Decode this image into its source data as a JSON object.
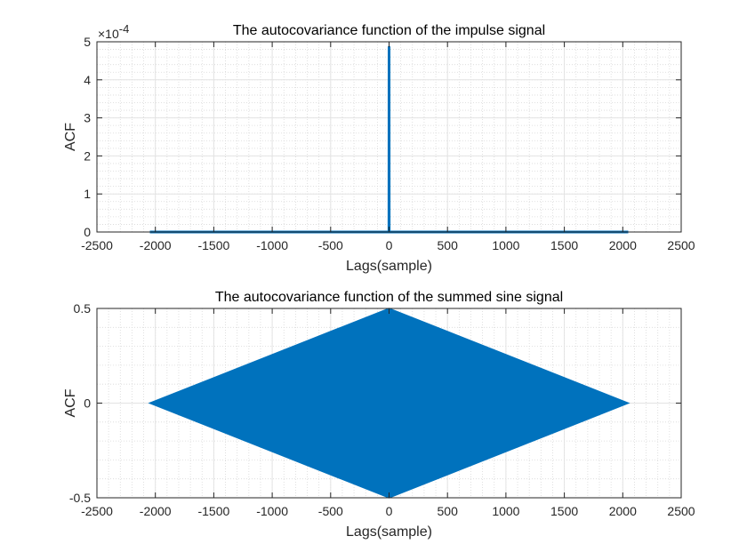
{
  "chart_data": [
    {
      "type": "line",
      "title": "The autocovariance function of the impulse signal",
      "xlabel": "Lags(sample)",
      "ylabel": "ACF",
      "xlim": [
        -2500,
        2500
      ],
      "ylim": [
        0,
        0.0005
      ],
      "xticks": [
        "-2500",
        "-2000",
        "-1500",
        "-1000",
        "-500",
        "0",
        "500",
        "1000",
        "1500",
        "2000",
        "2500"
      ],
      "yticks": [
        "0",
        "1",
        "2",
        "3",
        "4",
        "5"
      ],
      "yscale_exponent": "-4",
      "grid": true,
      "minor_grid": true,
      "color": "#0072BD",
      "series": [
        {
          "x": [
            -2047,
            -1,
            0,
            1,
            2047
          ],
          "y": [
            0,
            0,
            0.000488,
            0,
            0
          ]
        }
      ]
    },
    {
      "type": "area",
      "title": "The autocovariance function of the summed sine signal",
      "xlabel": "Lags(sample)",
      "ylabel": "ACF",
      "xlim": [
        -2500,
        2500
      ],
      "ylim": [
        -0.5,
        0.5
      ],
      "xticks": [
        "-2500",
        "-2000",
        "-1500",
        "-1000",
        "-500",
        "0",
        "500",
        "1000",
        "1500",
        "2000",
        "2500"
      ],
      "yticks": [
        "-0.5",
        "0",
        "0.5"
      ],
      "grid": true,
      "minor_grid": true,
      "color": "#0072BD",
      "envelope": {
        "x": [
          -2047,
          0,
          2047
        ],
        "upper": [
          0,
          0.5,
          0
        ],
        "lower": [
          0,
          -0.5,
          0
        ]
      }
    }
  ]
}
